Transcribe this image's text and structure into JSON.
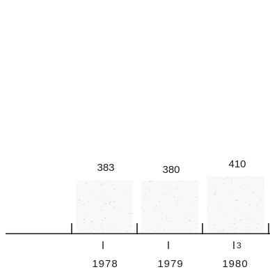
{
  "chart_data": {
    "type": "bar",
    "categories": [
      "1978",
      "1979",
      "1980"
    ],
    "values": [
      383,
      380,
      410
    ],
    "title": "",
    "xlabel": "",
    "ylabel": "",
    "grid": false,
    "legend": "none",
    "colors": {
      "bar_fill": "#f2f2f2",
      "bar_speckle": "#bdbdbd",
      "axis": "#1a1a1a",
      "text": "#1a1a1a",
      "background": "#ffffff"
    }
  },
  "stray_mark": "3"
}
